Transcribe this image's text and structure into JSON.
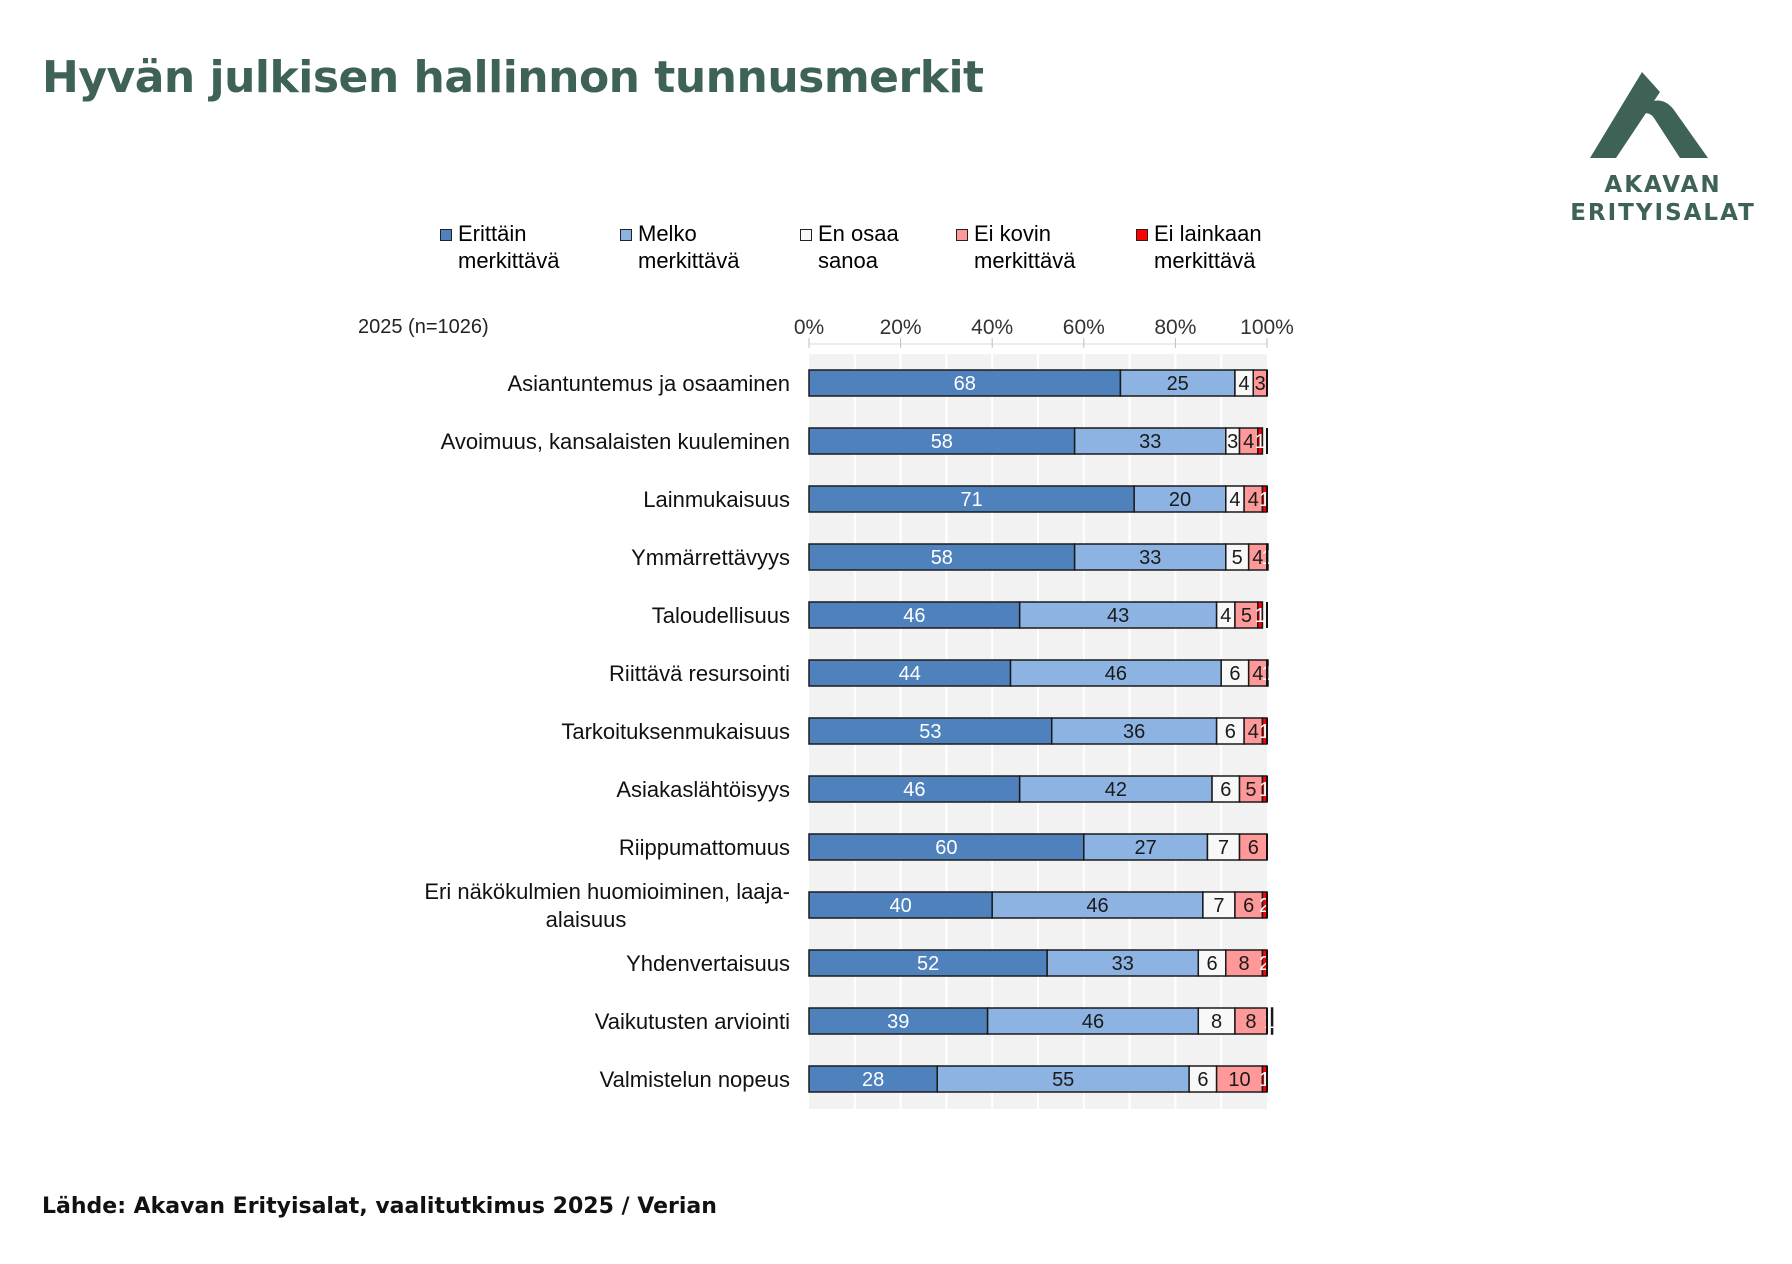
{
  "page": {
    "title": "Hyvän julkisen hallinnon tunnusmerkit",
    "source": "Lähde: Akavan Erityisalat, vaalitutkimus 2025 / Verian"
  },
  "logo": {
    "line1": "AKAVAN",
    "line2": "ERITYISALAT",
    "color": "#3e6356"
  },
  "chart_data": {
    "type": "bar",
    "orientation": "horizontal-stacked-100",
    "title": "Hyvän julkisen hallinnon tunnusmerkit",
    "sample_label": "2025 (n=1026)",
    "xlabel": "",
    "ylabel": "",
    "xlim": [
      0,
      100
    ],
    "x_ticks": [
      "0%",
      "20%",
      "40%",
      "60%",
      "80%",
      "100%"
    ],
    "grid": true,
    "legend_position": "top",
    "categories": [
      "Asiantuntemus ja osaaminen",
      "Avoimuus, kansalaisten kuuleminen",
      "Lainmukaisuus",
      "Ymmärrettävyys",
      "Taloudellisuus",
      "Riittävä resursointi",
      "Tarkoituksenmukaisuus",
      "Asiakaslähtöisyys",
      "Riippumattomuus",
      "Eri näkökulmien huomioiminen, laaja-alaisuus",
      "Yhdenvertaisuus",
      "Vaikutusten arviointi",
      "Valmistelun nopeus"
    ],
    "category_lines": [
      [
        "Asiantuntemus ja osaaminen"
      ],
      [
        "Avoimuus, kansalaisten kuuleminen"
      ],
      [
        "Lainmukaisuus"
      ],
      [
        "Ymmärrettävyys"
      ],
      [
        "Taloudellisuus"
      ],
      [
        "Riittävä resursointi"
      ],
      [
        "Tarkoituksenmukaisuus"
      ],
      [
        "Asiakaslähtöisyys"
      ],
      [
        "Riippumattomuus"
      ],
      [
        "Eri näkökulmien huomioiminen, laaja-",
        "alaisuus"
      ],
      [
        "Yhdenvertaisuus"
      ],
      [
        "Vaikutusten arviointi"
      ],
      [
        "Valmistelun nopeus"
      ]
    ],
    "series": [
      {
        "name": "Erittäin merkittävä",
        "legend_lines": [
          "Erittäin",
          "merkittävä"
        ],
        "color": "#4f81bd",
        "label_color": "#ffffff",
        "values": [
          68,
          58,
          71,
          58,
          46,
          44,
          53,
          46,
          60,
          40,
          52,
          39,
          28
        ]
      },
      {
        "name": "Melko merkittävä",
        "legend_lines": [
          "Melko",
          "merkittävä"
        ],
        "color": "#8db3e2",
        "label_color": "#1a1a1a",
        "values": [
          25,
          33,
          20,
          33,
          43,
          46,
          36,
          42,
          27,
          46,
          33,
          46,
          55
        ]
      },
      {
        "name": "En osaa sanoa",
        "legend_lines": [
          "En osaa",
          "sanoa"
        ],
        "color": "#f8f8f8",
        "label_color": "#1a1a1a",
        "values": [
          4,
          3,
          4,
          5,
          4,
          6,
          6,
          6,
          7,
          7,
          6,
          8,
          6
        ]
      },
      {
        "name": "Ei kovin merkittävä",
        "legend_lines": [
          "Ei kovin",
          "merkittävä"
        ],
        "color": "#ff9999",
        "label_color": "#1a1a1a",
        "values": [
          3,
          4,
          4,
          4,
          5,
          4,
          4,
          5,
          6,
          6,
          8,
          8,
          10
        ]
      },
      {
        "name": "Ei lainkaan merkittävä",
        "legend_lines": [
          "Ei lainkaan",
          "merkittävä"
        ],
        "color": "#ff0000",
        "label_color": "#ffffff",
        "values": [
          0,
          1,
          1,
          1,
          1,
          1,
          1,
          1,
          0,
          2,
          2,
          1,
          1
        ]
      }
    ]
  }
}
